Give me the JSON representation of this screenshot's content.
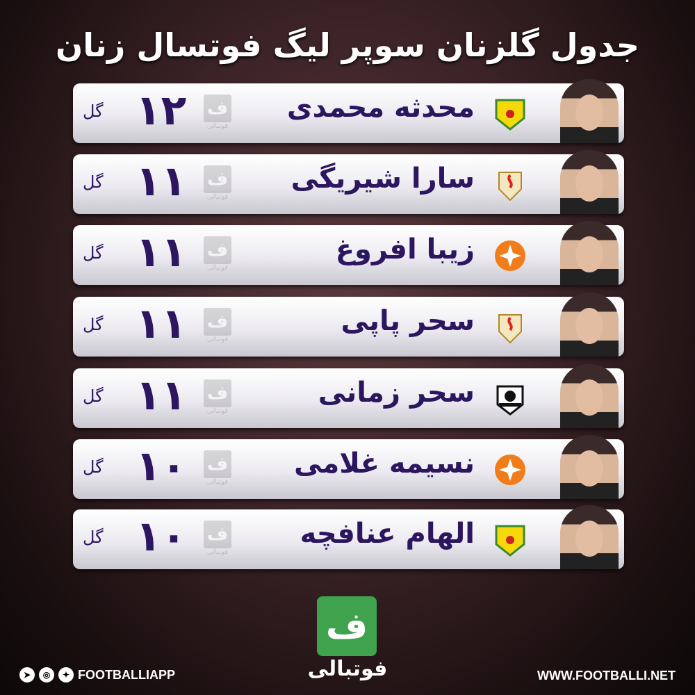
{
  "title": "جدول گلزنان سوپر لیگ  فوتسال زنان",
  "goal_unit": "گل",
  "watermark": "فوتبالی",
  "players": [
    {
      "name": "محدثه محمدی",
      "goals": "۱۲",
      "team_logo": "naft-shield-yellow"
    },
    {
      "name": "سارا شیریگی",
      "goals": "۱۱",
      "team_logo": "nic-shield"
    },
    {
      "name": "زیبا افروغ",
      "goals": "۱۱",
      "team_logo": "saipa-orange"
    },
    {
      "name": "سحر پاپی",
      "goals": "۱۱",
      "team_logo": "nic-shield"
    },
    {
      "name": "سحر زمانی",
      "goals": "۱۱",
      "team_logo": "shahin-eagle"
    },
    {
      "name": "نسیمه غلامی",
      "goals": "۱۰",
      "team_logo": "saipa-orange"
    },
    {
      "name": "الهام عنافچه",
      "goals": "۱۰",
      "team_logo": "naft-shield-yellow"
    }
  ],
  "footer": {
    "brand_glyph": "ف",
    "brand_name": "فوتبالی",
    "social_handle": "FOOTBALLIAPP",
    "website": "WWW.FOOTBALLI.NET"
  },
  "colors": {
    "text": "#2c1660",
    "brand_green": "#3fa34d",
    "saipa": "#f07d1a",
    "naft": "#f5d90a"
  }
}
